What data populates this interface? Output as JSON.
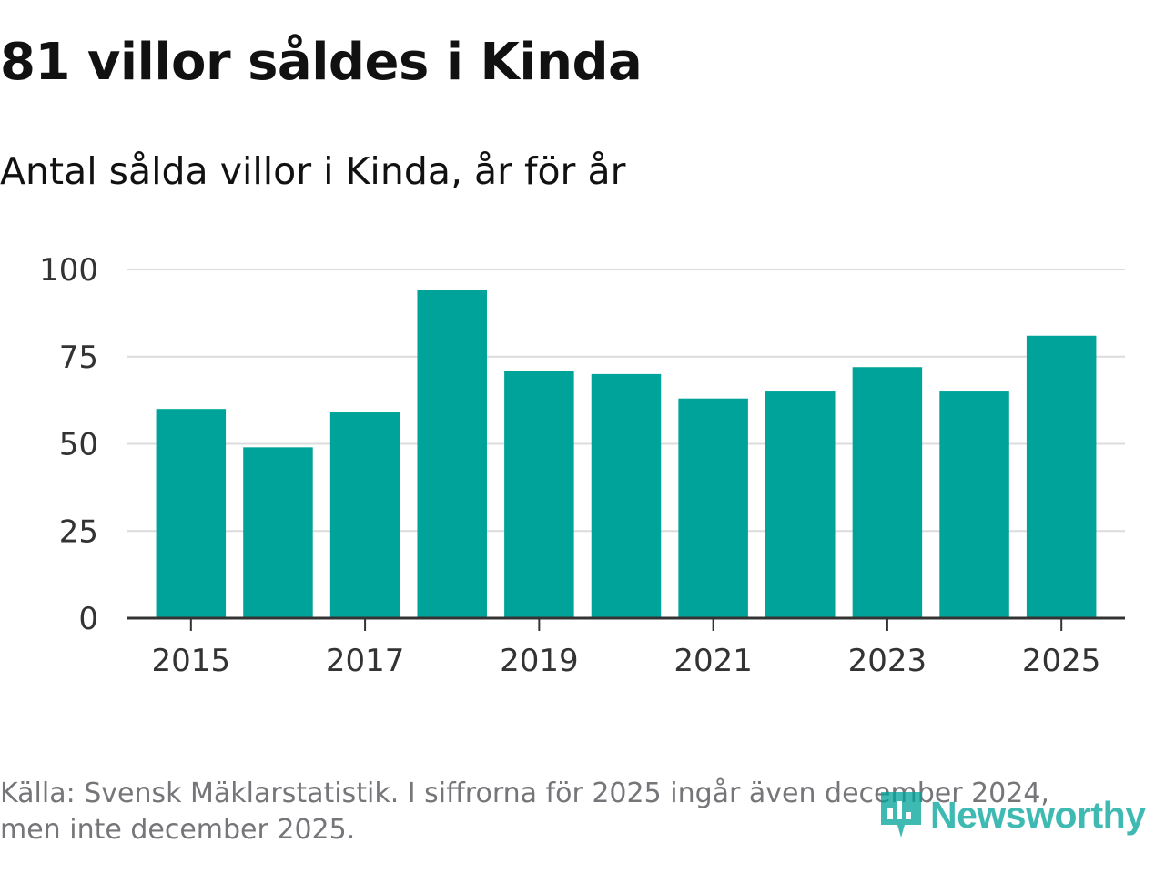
{
  "header": {
    "title": "81 villor såldes i Kinda",
    "subtitle": "Antal sålda villor i Kinda, år för år"
  },
  "chart_data": {
    "type": "bar",
    "title": "81 villor såldes i Kinda",
    "subtitle": "Antal sålda villor i Kinda, år för år",
    "xlabel": "",
    "ylabel": "",
    "categories": [
      "2015",
      "2016",
      "2017",
      "2018",
      "2019",
      "2020",
      "2021",
      "2022",
      "2023",
      "2024",
      "2025"
    ],
    "values": [
      60,
      49,
      59,
      94,
      71,
      70,
      63,
      65,
      72,
      65,
      81
    ],
    "x_tick_labels": [
      "2015",
      "2017",
      "2019",
      "2021",
      "2023",
      "2025"
    ],
    "ylim": [
      0,
      100
    ],
    "y_ticks": [
      0,
      25,
      50,
      75,
      100
    ],
    "grid": true,
    "bar_color": "#00a39a"
  },
  "footer": {
    "source_line1": "Källa: Svensk Mäklarstatistik. I siffrorna för 2025 ingår även december 2024,",
    "source_line2": "men inte december 2025.",
    "brand": "Newsworthy",
    "brand_color": "#00a39a"
  }
}
